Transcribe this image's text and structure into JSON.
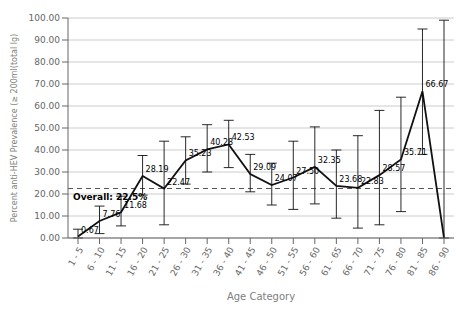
{
  "chart_data": {
    "type": "line",
    "categories": [
      "1 - 5",
      "6 - 10",
      "11 - 15",
      "16 - 20",
      "21 - 25",
      "26 - 30",
      "31 - 35",
      "36 - 40",
      "41 - 45",
      "46 - 50",
      "51 - 55",
      "56 - 60",
      "61 - 65",
      "66 - 70",
      "71 - 75",
      "76 - 80",
      "81 - 85",
      "86 - 90"
    ],
    "values": [
      0.67,
      7.76,
      11.68,
      28.19,
      22.47,
      35.23,
      40.28,
      42.53,
      29.09,
      24.07,
      27.5,
      32.35,
      23.68,
      22.83,
      28.57,
      35.71,
      66.67,
      0.0
    ],
    "value_labels": [
      "0.67",
      "7.76",
      "11.68",
      "28.19",
      "22.47",
      "35.23",
      "40.28",
      "42.53",
      "29.09",
      "24.07",
      "27.50",
      "32.35",
      "23.68",
      "22.83",
      "28.57",
      "35.71",
      "66.67",
      null
    ],
    "data_labels": true,
    "error_upper": [
      4.0,
      14.5,
      19.0,
      37.5,
      44.0,
      46.0,
      51.5,
      53.5,
      38.0,
      34.0,
      44.0,
      50.5,
      40.0,
      46.5,
      58.0,
      64.0,
      95.0,
      99.0
    ],
    "error_lower": [
      0.0,
      2.0,
      5.5,
      19.5,
      6.0,
      24.5,
      30.0,
      32.0,
      21.0,
      15.0,
      13.0,
      15.5,
      9.0,
      4.5,
      6.0,
      12.0,
      38.0,
      0.0
    ],
    "color": "#111111",
    "reference_lines": [
      {
        "y": 22.5,
        "label": "Overall: 22.5%",
        "color": "#555555",
        "line_style": "dashed"
      }
    ],
    "xlabel": "Age Category",
    "ylabel": "Percent anti-HEV Prevalence (≥ 200ml(total lg)",
    "ylim": [
      0.0,
      100.0
    ],
    "yticks": [
      {
        "value": 0,
        "label": "0.00"
      },
      {
        "value": 10,
        "label": "10.00"
      },
      {
        "value": 20,
        "label": "20.00"
      },
      {
        "value": 30,
        "label": "30.00"
      },
      {
        "value": 40,
        "label": "40.00"
      },
      {
        "value": 50,
        "label": "50.00"
      },
      {
        "value": 60,
        "label": "60.00"
      },
      {
        "value": 70,
        "label": "70.00"
      },
      {
        "value": 80,
        "label": "80.00"
      },
      {
        "value": 90,
        "label": "90.00"
      },
      {
        "value": 100,
        "label": "100.00"
      }
    ],
    "grid": true
  }
}
